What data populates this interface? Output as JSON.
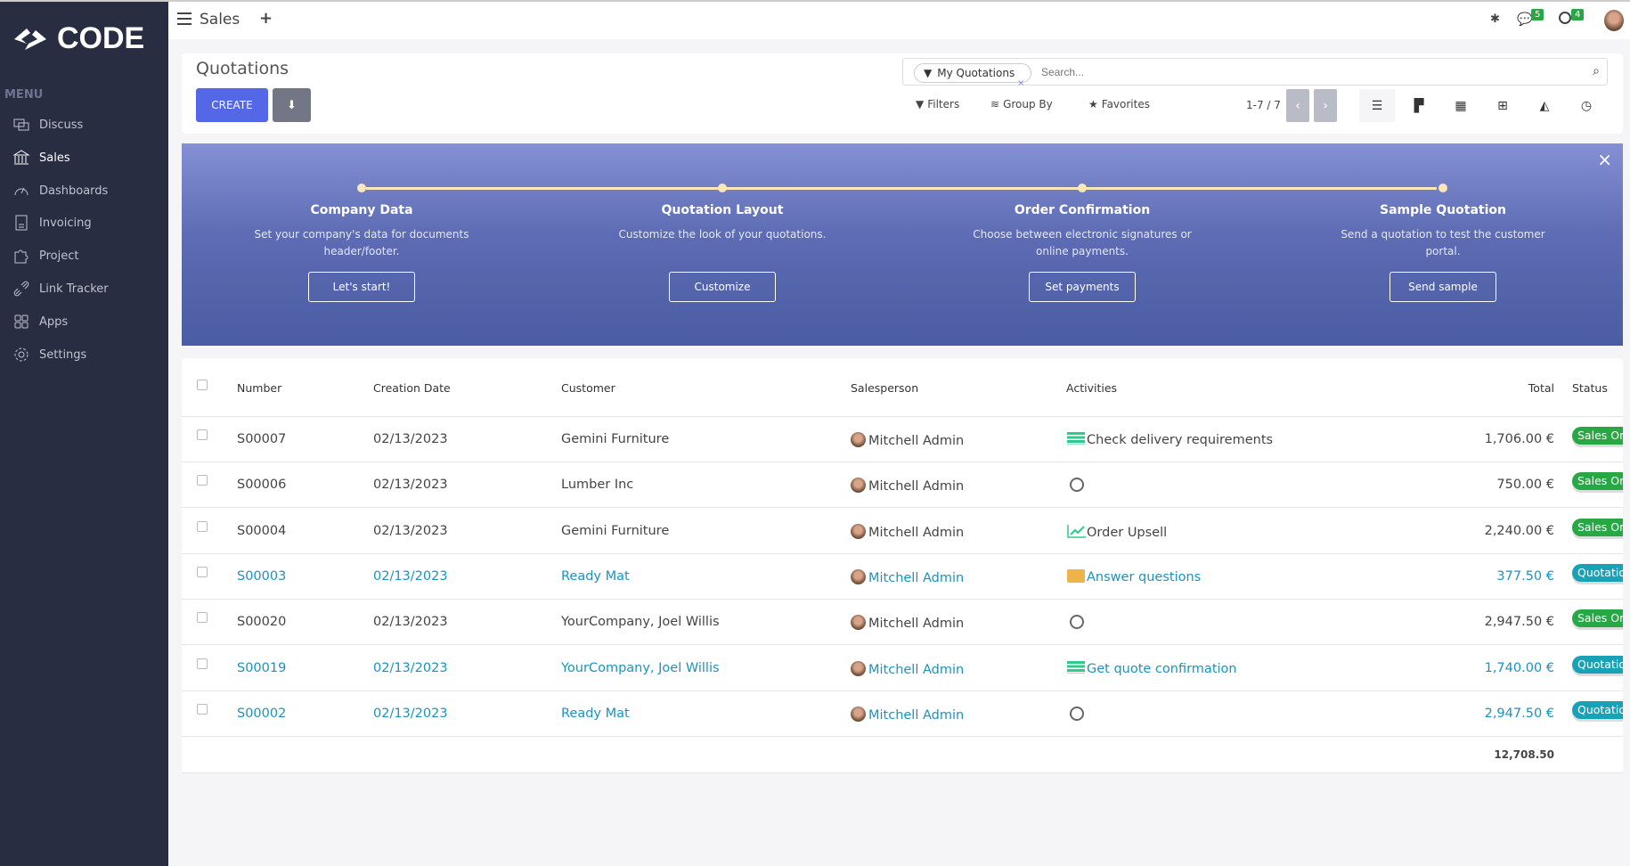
{
  "brand": "CODE",
  "sidebar": {
    "menu_label": "MENU",
    "items": [
      {
        "label": "Discuss",
        "icon": "chat-icon"
      },
      {
        "label": "Sales",
        "icon": "bank-icon",
        "active": true
      },
      {
        "label": "Dashboards",
        "icon": "gauge-icon"
      },
      {
        "label": "Invoicing",
        "icon": "invoice-icon"
      },
      {
        "label": "Project",
        "icon": "puzzle-icon"
      },
      {
        "label": "Link Tracker",
        "icon": "link-icon"
      },
      {
        "label": "Apps",
        "icon": "grid-icon"
      },
      {
        "label": "Settings",
        "icon": "gear-icon"
      }
    ]
  },
  "topbar": {
    "app": "Sales",
    "messages_count": "5",
    "activities_count": "4"
  },
  "control": {
    "title": "Quotations",
    "create_label": "CREATE",
    "facet": "My Quotations",
    "search_placeholder": "Search...",
    "filters": "Filters",
    "group_by": "Group By",
    "favorites": "Favorites",
    "pager": "1-7 / 7"
  },
  "banner": {
    "steps": [
      {
        "title": "Company Data",
        "desc": "Set your company's data for documents header/footer.",
        "button": "Let's start!"
      },
      {
        "title": "Quotation Layout",
        "desc": "Customize the look of your quotations.",
        "button": "Customize"
      },
      {
        "title": "Order Confirmation",
        "desc": "Choose between electronic signatures or online payments.",
        "button": "Set payments"
      },
      {
        "title": "Sample Quotation",
        "desc": "Send a quotation to test the customer portal.",
        "button": "Send sample"
      }
    ]
  },
  "table": {
    "columns": [
      "Number",
      "Creation Date",
      "Customer",
      "Salesperson",
      "Activities",
      "Total",
      "Status"
    ],
    "rows": [
      {
        "number": "S00007",
        "date": "02/13/2023",
        "customer": "Gemini Furniture",
        "salesperson": "Mitchell Admin",
        "activity": "Check delivery requirements",
        "activity_icon": "tasks-icon",
        "total": "1,706.00 €",
        "status": "Sales Order",
        "link": false
      },
      {
        "number": "S00006",
        "date": "02/13/2023",
        "customer": "Lumber Inc",
        "salesperson": "Mitchell Admin",
        "activity": "",
        "activity_icon": "clock-icon",
        "total": "750.00 €",
        "status": "Sales Order",
        "link": false
      },
      {
        "number": "S00004",
        "date": "02/13/2023",
        "customer": "Gemini Furniture",
        "salesperson": "Mitchell Admin",
        "activity": "Order Upsell",
        "activity_icon": "chart-line-icon",
        "total": "2,240.00 €",
        "status": "Sales Order",
        "link": false
      },
      {
        "number": "S00003",
        "date": "02/13/2023",
        "customer": "Ready Mat",
        "salesperson": "Mitchell Admin",
        "activity": "Answer questions",
        "activity_icon": "envelope-icon",
        "total": "377.50 €",
        "status": "Quotation",
        "link": true
      },
      {
        "number": "S00020",
        "date": "02/13/2023",
        "customer": "YourCompany, Joel Willis",
        "salesperson": "Mitchell Admin",
        "activity": "",
        "activity_icon": "clock-icon",
        "total": "2,947.50 €",
        "status": "Sales Order",
        "link": false
      },
      {
        "number": "S00019",
        "date": "02/13/2023",
        "customer": "YourCompany, Joel Willis",
        "salesperson": "Mitchell Admin",
        "activity": "Get quote confirmation",
        "activity_icon": "tasks-icon",
        "total": "1,740.00 €",
        "status": "Quotation",
        "link": true
      },
      {
        "number": "S00002",
        "date": "02/13/2023",
        "customer": "Ready Mat",
        "salesperson": "Mitchell Admin",
        "activity": "",
        "activity_icon": "clock-icon",
        "total": "2,947.50 €",
        "status": "Quotation",
        "link": true
      }
    ],
    "sum_total": "12,708.50"
  },
  "colors": {
    "sidebar": "#282d42",
    "primary": "#5468e7",
    "link": "#1a93bf",
    "sales_order": "#28a745",
    "quotation": "#17a2b8"
  }
}
